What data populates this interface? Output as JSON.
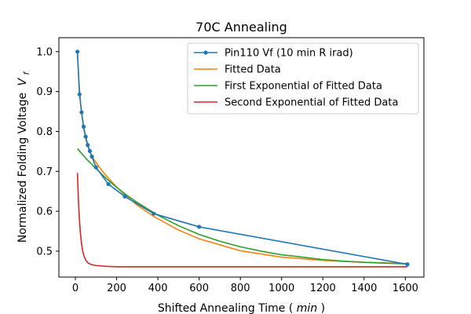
{
  "chart_data": {
    "type": "line",
    "title": "70C Annealing",
    "xlabel": "Shifted Annealing Time",
    "xlabel_unit": "min",
    "ylabel": "Normalized Folding Voltage",
    "ylabel_symbol": "V",
    "ylabel_subscript": "f",
    "xlim": [
      -80,
      1690
    ],
    "ylim": [
      0.435,
      1.035
    ],
    "xticks": [
      0,
      200,
      400,
      600,
      800,
      1000,
      1200,
      1400,
      1600
    ],
    "yticks": [
      0.5,
      0.6,
      0.7,
      0.8,
      0.9,
      1.0
    ],
    "ytick_labels": [
      "0.5",
      "0.6",
      "0.7",
      "0.8",
      "0.9",
      "1.0"
    ],
    "legend_position": "top-right",
    "series": [
      {
        "name": "Pin110 Vf (10 min R irad)",
        "color": "#1f77b4",
        "marker": "circle",
        "x": [
          10,
          20,
          30,
          40,
          50,
          60,
          70,
          80,
          100,
          160,
          240,
          380,
          600,
          1610
        ],
        "y": [
          1.0,
          0.893,
          0.848,
          0.812,
          0.787,
          0.766,
          0.751,
          0.737,
          0.71,
          0.668,
          0.637,
          0.594,
          0.561,
          0.467
        ]
      },
      {
        "name": "Fitted Data",
        "color": "#ff7f0e",
        "x": [
          10,
          15,
          20,
          25,
          30,
          35,
          40,
          45,
          50,
          55,
          60,
          65,
          70,
          75,
          80,
          90,
          100,
          120,
          140,
          160,
          200,
          240,
          300,
          380,
          500,
          600,
          800,
          1000,
          1200,
          1400,
          1610
        ],
        "y": [
          0.993,
          0.945,
          0.906,
          0.874,
          0.848,
          0.827,
          0.809,
          0.795,
          0.783,
          0.772,
          0.764,
          0.756,
          0.75,
          0.744,
          0.739,
          0.73,
          0.722,
          0.708,
          0.695,
          0.683,
          0.661,
          0.641,
          0.615,
          0.587,
          0.553,
          0.531,
          0.501,
          0.485,
          0.477,
          0.472,
          0.469
        ]
      },
      {
        "name": "First Exponential of Fitted Data",
        "color": "#2ca02c",
        "x": [
          10,
          50,
          100,
          150,
          200,
          250,
          300,
          400,
          500,
          600,
          700,
          800,
          900,
          1000,
          1100,
          1200,
          1300,
          1400,
          1500,
          1610
        ],
        "y": [
          0.757,
          0.733,
          0.707,
          0.682,
          0.66,
          0.64,
          0.622,
          0.59,
          0.564,
          0.542,
          0.525,
          0.511,
          0.5,
          0.491,
          0.485,
          0.479,
          0.475,
          0.472,
          0.47,
          0.468
        ]
      },
      {
        "name": "Second Exponential of Fitted Data",
        "color": "#d62728",
        "x": [
          10,
          15,
          20,
          25,
          30,
          35,
          40,
          45,
          50,
          60,
          70,
          80,
          100,
          150,
          200,
          400,
          800,
          1200,
          1610
        ],
        "y": [
          0.696,
          0.625,
          0.576,
          0.542,
          0.519,
          0.502,
          0.491,
          0.484,
          0.478,
          0.471,
          0.468,
          0.466,
          0.464,
          0.462,
          0.461,
          0.461,
          0.461,
          0.461,
          0.461
        ]
      }
    ]
  }
}
